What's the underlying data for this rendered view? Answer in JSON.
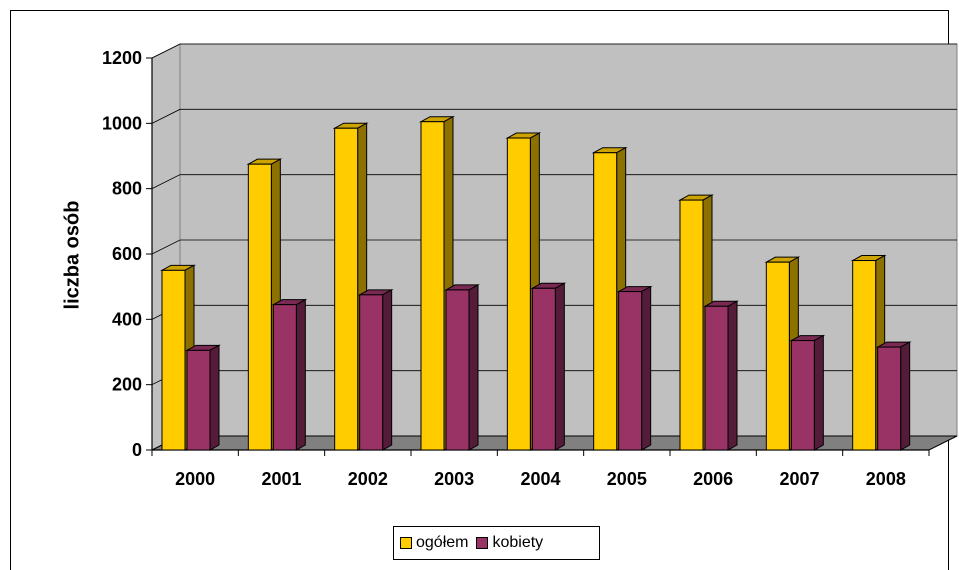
{
  "chart_data": {
    "type": "bar",
    "ylabel": "liczba osób",
    "xlabel": "",
    "ylim": [
      0,
      1200
    ],
    "yticks": [
      0,
      200,
      400,
      600,
      800,
      1000,
      1200
    ],
    "grid": true,
    "legend_position": "bottom",
    "categories": [
      "2000",
      "2001",
      "2002",
      "2003",
      "2004",
      "2005",
      "2006",
      "2007",
      "2008"
    ],
    "series": [
      {
        "name": "ogółem",
        "color": "#ffcc00",
        "values": [
          550,
          875,
          985,
          1005,
          955,
          910,
          765,
          575,
          580
        ]
      },
      {
        "name": "kobiety",
        "color": "#993366",
        "values": [
          305,
          445,
          475,
          490,
          495,
          485,
          440,
          335,
          315
        ]
      }
    ]
  }
}
